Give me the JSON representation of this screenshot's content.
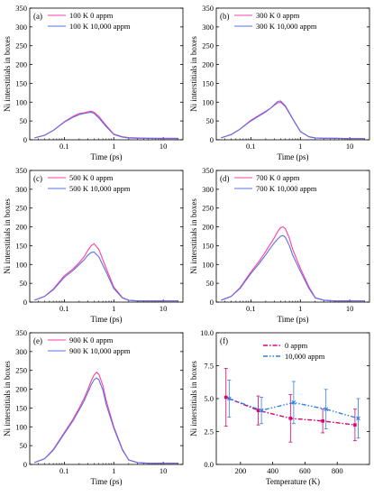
{
  "colors": {
    "series_a": "#ff3fa0",
    "series_b": "#5a6fe8",
    "cross_a": "#e0006e",
    "cross_b": "#2f7fe6",
    "axis": "#000000"
  },
  "chart_data": [
    {
      "type": "line",
      "panel_label": "(a)",
      "xscale": "log",
      "xlim": [
        0.02,
        25
      ],
      "ylim": [
        0,
        350
      ],
      "xticks": [
        "0.1",
        "1",
        "10"
      ],
      "yticks": [
        "0",
        "50",
        "100",
        "150",
        "200",
        "250",
        "300",
        "350"
      ],
      "xlabel": "Time (ps)",
      "ylabel": "Ni interstitials in boxes",
      "series": [
        {
          "name": "100 K 0 appm",
          "x": [
            0.025,
            0.04,
            0.06,
            0.1,
            0.15,
            0.2,
            0.25,
            0.3,
            0.35,
            0.4,
            0.5,
            0.7,
            1,
            1.5,
            2,
            3,
            5,
            10,
            20
          ],
          "y": [
            5,
            12,
            25,
            48,
            62,
            70,
            72,
            74,
            76,
            73,
            62,
            38,
            15,
            8,
            6,
            5,
            4,
            4,
            4
          ]
        },
        {
          "name": "100 K 10,000 appm",
          "x": [
            0.025,
            0.04,
            0.06,
            0.1,
            0.15,
            0.2,
            0.25,
            0.3,
            0.35,
            0.4,
            0.5,
            0.7,
            1,
            1.5,
            2,
            3,
            5,
            10,
            20
          ],
          "y": [
            5,
            12,
            25,
            47,
            60,
            67,
            70,
            72,
            73,
            70,
            58,
            35,
            14,
            7,
            5,
            4,
            4,
            3,
            3
          ]
        }
      ]
    },
    {
      "type": "line",
      "panel_label": "(b)",
      "xscale": "log",
      "xlim": [
        0.02,
        25
      ],
      "ylim": [
        0,
        350
      ],
      "xticks": [
        "0.1",
        "1",
        "10"
      ],
      "yticks": [
        "0",
        "50",
        "100",
        "150",
        "200",
        "250",
        "300",
        "350"
      ],
      "xlabel": "Time (ps)",
      "ylabel": "Ni interstitials in boxes",
      "series": [
        {
          "name": "300 K 0 appm",
          "x": [
            0.025,
            0.04,
            0.06,
            0.1,
            0.15,
            0.2,
            0.25,
            0.3,
            0.35,
            0.4,
            0.5,
            0.7,
            1,
            1.5,
            2,
            3,
            5,
            10,
            20
          ],
          "y": [
            5,
            14,
            28,
            52,
            66,
            76,
            84,
            92,
            98,
            100,
            88,
            55,
            22,
            8,
            5,
            4,
            4,
            3,
            3
          ]
        },
        {
          "name": "300 K 10,000 appm",
          "x": [
            0.025,
            0.04,
            0.06,
            0.1,
            0.15,
            0.2,
            0.25,
            0.3,
            0.35,
            0.4,
            0.5,
            0.7,
            1,
            1.5,
            2,
            3,
            5,
            10,
            20
          ],
          "y": [
            5,
            14,
            28,
            50,
            64,
            74,
            84,
            94,
            102,
            103,
            90,
            56,
            22,
            8,
            5,
            4,
            4,
            3,
            3
          ]
        }
      ]
    },
    {
      "type": "line",
      "panel_label": "(c)",
      "xscale": "log",
      "xlim": [
        0.02,
        25
      ],
      "ylim": [
        0,
        350
      ],
      "xticks": [
        "0.1",
        "1",
        "10"
      ],
      "yticks": [
        "0",
        "50",
        "100",
        "150",
        "200",
        "250",
        "300",
        "350"
      ],
      "xlabel": "Time (ps)",
      "ylabel": "Ni interstitials in boxes",
      "series": [
        {
          "name": "500 K 0 appm",
          "x": [
            0.025,
            0.04,
            0.06,
            0.1,
            0.15,
            0.2,
            0.25,
            0.3,
            0.35,
            0.4,
            0.5,
            0.7,
            1,
            1.5,
            2,
            3,
            5,
            10,
            20
          ],
          "y": [
            5,
            15,
            35,
            70,
            88,
            105,
            120,
            138,
            150,
            155,
            140,
            90,
            40,
            12,
            5,
            3,
            3,
            3,
            3
          ]
        },
        {
          "name": "500 K 10,000 appm",
          "x": [
            0.025,
            0.04,
            0.06,
            0.1,
            0.15,
            0.2,
            0.25,
            0.3,
            0.35,
            0.4,
            0.5,
            0.7,
            1,
            1.5,
            2,
            3,
            5,
            10,
            20
          ],
          "y": [
            5,
            15,
            33,
            66,
            84,
            100,
            112,
            125,
            132,
            133,
            120,
            80,
            36,
            11,
            5,
            3,
            3,
            3,
            3
          ]
        }
      ]
    },
    {
      "type": "line",
      "panel_label": "(d)",
      "xscale": "log",
      "xlim": [
        0.02,
        25
      ],
      "ylim": [
        0,
        350
      ],
      "xticks": [
        "0.1",
        "1",
        "10"
      ],
      "yticks": [
        "0",
        "50",
        "100",
        "150",
        "200",
        "250",
        "300",
        "350"
      ],
      "xlabel": "Time (ps)",
      "ylabel": "Ni interstitials in boxes",
      "series": [
        {
          "name": "700 K 0 appm",
          "x": [
            0.025,
            0.04,
            0.06,
            0.1,
            0.15,
            0.2,
            0.25,
            0.3,
            0.35,
            0.4,
            0.45,
            0.5,
            0.6,
            0.7,
            1,
            1.5,
            2,
            3,
            5,
            10,
            20
          ],
          "y": [
            5,
            15,
            38,
            80,
            110,
            135,
            155,
            172,
            188,
            198,
            200,
            195,
            170,
            140,
            90,
            40,
            12,
            5,
            3,
            3,
            3
          ]
        },
        {
          "name": "700 K 10,000 appm",
          "x": [
            0.025,
            0.04,
            0.06,
            0.1,
            0.15,
            0.2,
            0.25,
            0.3,
            0.35,
            0.4,
            0.45,
            0.5,
            0.6,
            0.7,
            1,
            1.5,
            2,
            3,
            5,
            10,
            20
          ],
          "y": [
            5,
            15,
            36,
            76,
            104,
            126,
            144,
            158,
            168,
            175,
            177,
            172,
            150,
            125,
            82,
            36,
            11,
            5,
            3,
            3,
            3
          ]
        }
      ]
    },
    {
      "type": "line",
      "panel_label": "(e)",
      "xscale": "log",
      "xlim": [
        0.02,
        25
      ],
      "ylim": [
        0,
        350
      ],
      "xticks": [
        "0.1",
        "1",
        "10"
      ],
      "yticks": [
        "0",
        "50",
        "100",
        "150",
        "200",
        "250",
        "300",
        "350"
      ],
      "xlabel": "Time (ps)",
      "ylabel": "Ni interstitials in boxes",
      "series": [
        {
          "name": "900 K 0 appm",
          "x": [
            0.025,
            0.04,
            0.06,
            0.1,
            0.15,
            0.2,
            0.25,
            0.3,
            0.35,
            0.4,
            0.45,
            0.5,
            0.6,
            0.7,
            1,
            1.5,
            2,
            3,
            5,
            10,
            20
          ],
          "y": [
            5,
            15,
            40,
            85,
            120,
            150,
            175,
            200,
            222,
            238,
            245,
            240,
            210,
            170,
            100,
            40,
            12,
            5,
            3,
            3,
            3
          ]
        },
        {
          "name": "900 K 10,000 appm",
          "x": [
            0.025,
            0.04,
            0.06,
            0.1,
            0.15,
            0.2,
            0.25,
            0.3,
            0.35,
            0.4,
            0.45,
            0.5,
            0.6,
            0.7,
            1,
            1.5,
            2,
            3,
            5,
            10,
            20
          ],
          "y": [
            5,
            15,
            38,
            82,
            116,
            145,
            168,
            192,
            212,
            225,
            230,
            225,
            198,
            160,
            96,
            38,
            12,
            5,
            3,
            3,
            3
          ]
        }
      ]
    },
    {
      "type": "line",
      "panel_label": "(f)",
      "xscale": "linear",
      "xlim": [
        50,
        1000
      ],
      "ylim": [
        0,
        10
      ],
      "xticks": [
        "200",
        "400",
        "600",
        "800"
      ],
      "xtick_values": [
        200,
        400,
        600,
        800
      ],
      "yticks": [
        "0.0",
        "2.5",
        "5.0",
        "7.5",
        "10.0"
      ],
      "ytick_values": [
        0,
        2.5,
        5,
        7.5,
        10
      ],
      "xlabel": "Temperature (K)",
      "ylabel": "Ni interstitials in boxes",
      "series": [
        {
          "name": "0 appm",
          "x": [
            110,
            310,
            510,
            710,
            910
          ],
          "y": [
            5.1,
            4.1,
            3.5,
            3.3,
            3.0
          ],
          "err": [
            2.2,
            1.1,
            1.8,
            0.9,
            1.2
          ]
        },
        {
          "name": "10,000 appm",
          "x": [
            130,
            330,
            530,
            730,
            930
          ],
          "y": [
            5.0,
            4.1,
            4.7,
            4.2,
            3.5
          ],
          "err": [
            1.4,
            1.0,
            1.6,
            1.5,
            1.5
          ]
        }
      ]
    }
  ]
}
